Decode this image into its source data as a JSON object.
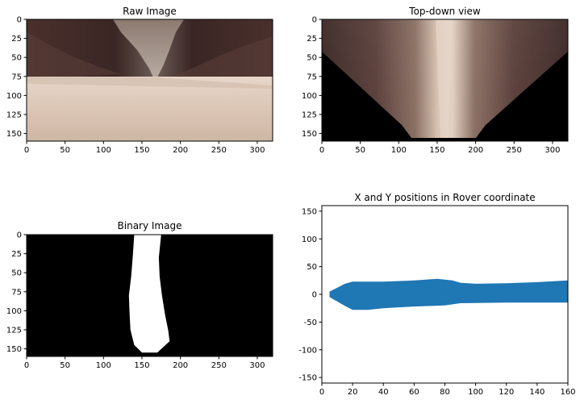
{
  "figure": {
    "panels": [
      {
        "id": "raw",
        "title": "Raw Image",
        "xticks": [
          0,
          50,
          100,
          150,
          200,
          250,
          300
        ],
        "yticks": [
          0,
          25,
          50,
          75,
          100,
          125,
          150
        ],
        "xlim": [
          0,
          320
        ],
        "ylim": [
          160,
          0
        ],
        "content": "camera-image"
      },
      {
        "id": "topdown",
        "title": "Top-down view",
        "xticks": [
          0,
          50,
          100,
          150,
          200,
          250,
          300
        ],
        "yticks": [
          0,
          25,
          50,
          75,
          100,
          125,
          150
        ],
        "xlim": [
          0,
          320
        ],
        "ylim": [
          160,
          0
        ],
        "content": "warped-image"
      },
      {
        "id": "binary",
        "title": "Binary Image",
        "xticks": [
          0,
          50,
          100,
          150,
          200,
          250,
          300
        ],
        "yticks": [
          0,
          25,
          50,
          75,
          100,
          125,
          150
        ],
        "xlim": [
          0,
          320
        ],
        "ylim": [
          160,
          0
        ],
        "content": "thresholded-image"
      },
      {
        "id": "rover",
        "title": "X and Y positions in Rover coordinate",
        "xticks": [
          0,
          20,
          40,
          60,
          80,
          100,
          120,
          140,
          160
        ],
        "yticks": [
          150,
          100,
          50,
          0,
          -50,
          -100,
          -150
        ],
        "xlim": [
          0,
          160
        ],
        "ylim": [
          -160,
          160
        ],
        "content": "scatter"
      }
    ]
  },
  "chart_data": [
    {
      "type": "heatmap",
      "title": "Raw Image",
      "xlim": [
        0,
        320
      ],
      "ylim": [
        160,
        0
      ]
    },
    {
      "type": "heatmap",
      "title": "Top-down view",
      "xlim": [
        0,
        320
      ],
      "ylim": [
        160,
        0
      ]
    },
    {
      "type": "heatmap",
      "title": "Binary Image",
      "xlim": [
        0,
        320
      ],
      "ylim": [
        160,
        0
      ],
      "navigable_left_edge": [
        [
          140,
          0
        ],
        [
          138,
          30
        ],
        [
          136,
          55
        ],
        [
          133,
          80
        ],
        [
          134,
          105
        ],
        [
          135,
          125
        ],
        [
          140,
          145
        ],
        [
          150,
          155
        ]
      ],
      "navigable_right_edge": [
        [
          175,
          0
        ],
        [
          172,
          30
        ],
        [
          173,
          55
        ],
        [
          176,
          80
        ],
        [
          180,
          105
        ],
        [
          184,
          125
        ],
        [
          186,
          140
        ],
        [
          170,
          155
        ]
      ]
    },
    {
      "type": "scatter",
      "title": "X and Y positions in Rover coordinate",
      "xlim": [
        0,
        160
      ],
      "ylim": [
        -160,
        160
      ],
      "color": "#1f77b4",
      "upper_edge": [
        [
          5,
          5
        ],
        [
          10,
          12
        ],
        [
          15,
          19
        ],
        [
          20,
          23
        ],
        [
          40,
          23
        ],
        [
          60,
          25
        ],
        [
          75,
          28
        ],
        [
          85,
          25
        ],
        [
          90,
          21
        ],
        [
          100,
          19
        ],
        [
          120,
          20
        ],
        [
          140,
          22
        ],
        [
          160,
          25
        ]
      ],
      "lower_edge": [
        [
          5,
          -5
        ],
        [
          10,
          -13
        ],
        [
          15,
          -21
        ],
        [
          20,
          -28
        ],
        [
          30,
          -28
        ],
        [
          40,
          -25
        ],
        [
          60,
          -22
        ],
        [
          80,
          -20
        ],
        [
          90,
          -16
        ],
        [
          120,
          -15
        ],
        [
          140,
          -15
        ],
        [
          160,
          -15
        ]
      ]
    }
  ]
}
